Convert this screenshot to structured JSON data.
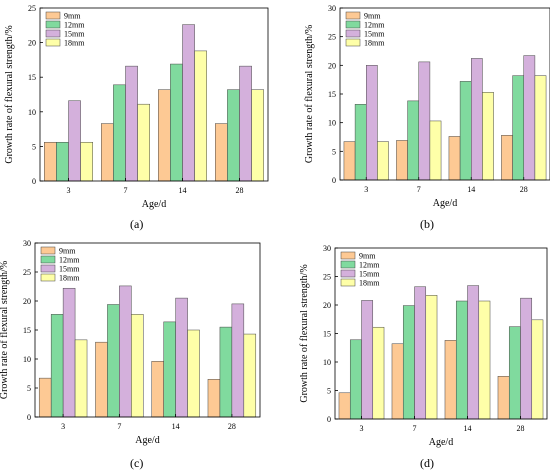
{
  "figure": {
    "series_names": [
      "9mm",
      "12mm",
      "15mm",
      "18mm"
    ],
    "colors": [
      "#FDC994",
      "#80DA9E",
      "#D4B0DC",
      "#FEFFA8"
    ],
    "edge_color": "#444444"
  },
  "chart_data": [
    {
      "type": "bar",
      "panel_label": "(a)",
      "xlabel": "Age/d",
      "ylabel": "Growth rate of flexural strength/%",
      "categories": [
        "3",
        "7",
        "14",
        "28"
      ],
      "ylim": [
        0,
        25
      ],
      "yticks": [
        0,
        5,
        10,
        15,
        20,
        25
      ],
      "legend_position": "top-left",
      "series": [
        {
          "name": "9mm",
          "values": [
            5.6,
            8.3,
            13.2,
            8.3
          ]
        },
        {
          "name": "12mm",
          "values": [
            5.6,
            13.9,
            16.9,
            13.2
          ]
        },
        {
          "name": "15mm",
          "values": [
            11.6,
            16.6,
            22.6,
            16.6
          ]
        },
        {
          "name": "18mm",
          "values": [
            5.6,
            11.1,
            18.8,
            13.2
          ]
        }
      ]
    },
    {
      "type": "bar",
      "panel_label": "(b)",
      "xlabel": "Age/d",
      "ylabel": "Growth rate of flexural strength/%",
      "categories": [
        "3",
        "7",
        "14",
        "28"
      ],
      "ylim": [
        0,
        30
      ],
      "yticks": [
        0,
        5,
        10,
        15,
        20,
        25,
        30
      ],
      "legend_position": "top-left",
      "series": [
        {
          "name": "9mm",
          "values": [
            6.7,
            6.9,
            7.6,
            7.8
          ]
        },
        {
          "name": "12mm",
          "values": [
            13.2,
            13.8,
            17.2,
            18.2
          ]
        },
        {
          "name": "15mm",
          "values": [
            20.0,
            20.6,
            21.2,
            21.7
          ]
        },
        {
          "name": "18mm",
          "values": [
            6.7,
            10.3,
            15.3,
            18.2
          ]
        }
      ]
    },
    {
      "type": "bar",
      "panel_label": "(c)",
      "xlabel": "Age/d",
      "ylabel": "Growth rate of flexural strength/%",
      "categories": [
        "3",
        "7",
        "14",
        "28"
      ],
      "ylim": [
        0,
        30
      ],
      "yticks": [
        0,
        5,
        10,
        15,
        20,
        25,
        30
      ],
      "legend_position": "top-left",
      "series": [
        {
          "name": "9mm",
          "values": [
            6.7,
            12.9,
            9.6,
            6.5
          ]
        },
        {
          "name": "12mm",
          "values": [
            17.7,
            19.4,
            16.4,
            15.5
          ]
        },
        {
          "name": "15mm",
          "values": [
            22.2,
            22.6,
            20.5,
            19.5
          ]
        },
        {
          "name": "18mm",
          "values": [
            13.3,
            17.7,
            15.0,
            14.3
          ]
        }
      ]
    },
    {
      "type": "bar",
      "panel_label": "(d)",
      "xlabel": "Age/d",
      "ylabel": "Growth rate of flexural strength/%",
      "categories": [
        "3",
        "7",
        "14",
        "28"
      ],
      "ylim": [
        0,
        30
      ],
      "yticks": [
        0,
        5,
        10,
        15,
        20,
        25,
        30
      ],
      "legend_position": "top-left",
      "series": [
        {
          "name": "9mm",
          "values": [
            4.6,
            13.2,
            13.8,
            7.5
          ]
        },
        {
          "name": "12mm",
          "values": [
            13.9,
            19.9,
            20.7,
            16.2
          ]
        },
        {
          "name": "15mm",
          "values": [
            20.8,
            23.2,
            23.4,
            21.2
          ]
        },
        {
          "name": "18mm",
          "values": [
            16.1,
            21.7,
            20.7,
            17.4
          ]
        }
      ]
    }
  ]
}
